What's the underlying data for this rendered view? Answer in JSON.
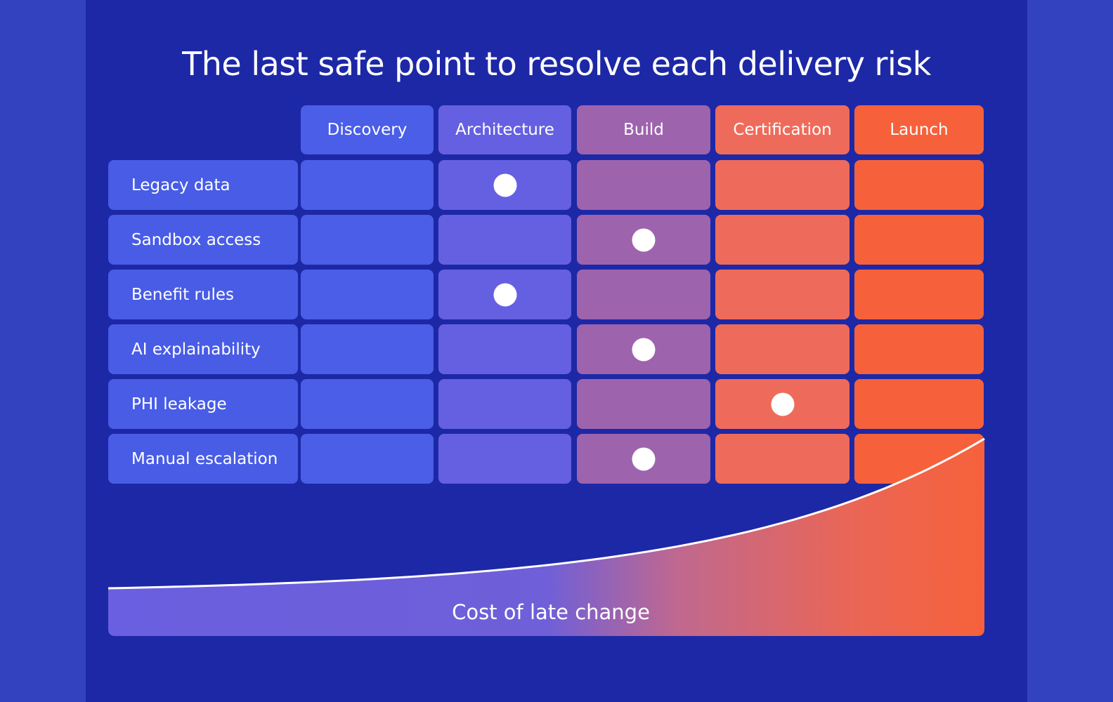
{
  "title": "The last safe point to resolve each delivery risk",
  "stages": [
    {
      "label": "Discovery",
      "color": "#4a5ee8"
    },
    {
      "label": "Architecture",
      "color": "#6560e1"
    },
    {
      "label": "Build",
      "color": "#9d63ad"
    },
    {
      "label": "Certification",
      "color": "#ee6b5b"
    },
    {
      "label": "Launch",
      "color": "#f6613b"
    }
  ],
  "risks": [
    {
      "label": "Legacy data",
      "last_safe_stage": "Architecture"
    },
    {
      "label": "Sandbox access",
      "last_safe_stage": "Build"
    },
    {
      "label": "Benefit rules",
      "last_safe_stage": "Architecture"
    },
    {
      "label": "AI explainability",
      "last_safe_stage": "Build"
    },
    {
      "label": "PHI leakage",
      "last_safe_stage": "Certification"
    },
    {
      "label": "Manual escalation",
      "last_safe_stage": "Build"
    }
  ],
  "cost_curve": {
    "label": "Cost of late change",
    "start_color": "#6a5fe0",
    "end_color": "#f6613b"
  },
  "colors": {
    "background": "#1d28a6",
    "row_label": "#485ce6",
    "marker": "#ffffff"
  }
}
